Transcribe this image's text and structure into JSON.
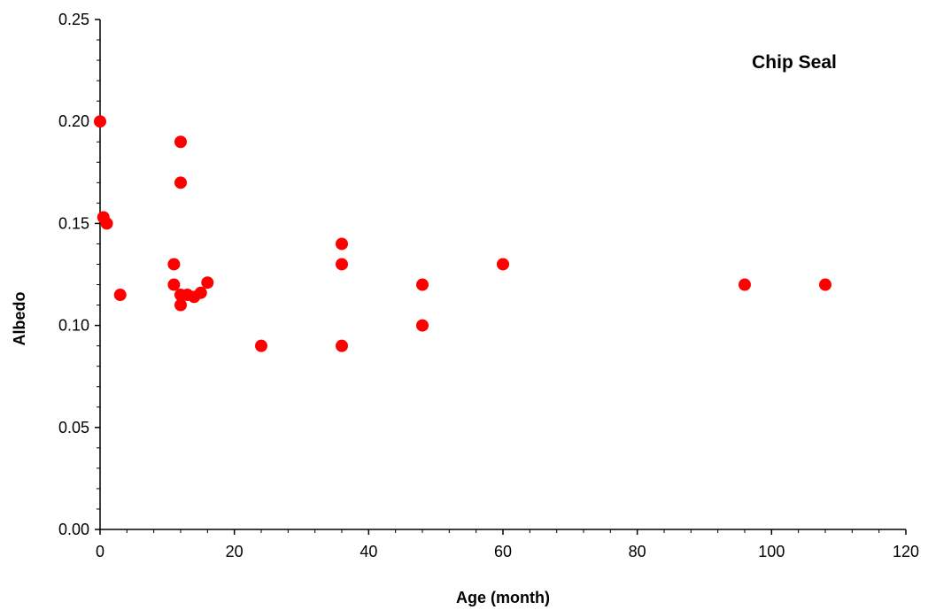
{
  "chart_data": {
    "type": "scatter",
    "title": "",
    "annotation": "Chip Seal",
    "xlabel": "Age (month)",
    "ylabel": "Albedo",
    "xlim": [
      0,
      120
    ],
    "ylim": [
      0,
      0.25
    ],
    "xticks": [
      "0",
      "20",
      "40",
      "60",
      "80",
      "100",
      "120"
    ],
    "yticks": [
      "0.00",
      "0.05",
      "0.10",
      "0.15",
      "0.20",
      "0.25"
    ],
    "grid": false,
    "marker_color": "#ff0000",
    "points": [
      {
        "x": 0,
        "y": 0.2
      },
      {
        "x": 0.5,
        "y": 0.153
      },
      {
        "x": 1,
        "y": 0.15
      },
      {
        "x": 3,
        "y": 0.115
      },
      {
        "x": 11,
        "y": 0.13
      },
      {
        "x": 11,
        "y": 0.12
      },
      {
        "x": 12,
        "y": 0.19
      },
      {
        "x": 12,
        "y": 0.17
      },
      {
        "x": 12,
        "y": 0.115
      },
      {
        "x": 12,
        "y": 0.11
      },
      {
        "x": 13,
        "y": 0.115
      },
      {
        "x": 14,
        "y": 0.114
      },
      {
        "x": 15,
        "y": 0.116
      },
      {
        "x": 16,
        "y": 0.121
      },
      {
        "x": 24,
        "y": 0.09
      },
      {
        "x": 36,
        "y": 0.14
      },
      {
        "x": 36,
        "y": 0.13
      },
      {
        "x": 36,
        "y": 0.09
      },
      {
        "x": 48,
        "y": 0.12
      },
      {
        "x": 48,
        "y": 0.1
      },
      {
        "x": 60,
        "y": 0.13
      },
      {
        "x": 96,
        "y": 0.12
      },
      {
        "x": 108,
        "y": 0.12
      }
    ]
  }
}
